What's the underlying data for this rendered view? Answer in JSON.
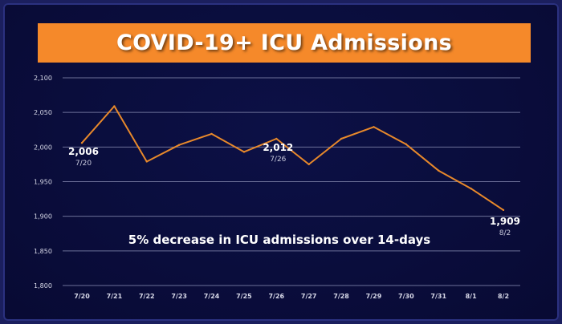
{
  "chart_data": {
    "type": "line",
    "title": "COVID-19+ ICU Admissions",
    "categories": [
      "7/20",
      "7/21",
      "7/22",
      "7/23",
      "7/24",
      "7/25",
      "7/26",
      "7/27",
      "7/28",
      "7/29",
      "7/30",
      "7/31",
      "8/1",
      "8/2"
    ],
    "series": [
      {
        "values": [
          2006,
          2059,
          1979,
          2003,
          2019,
          1993,
          2012,
          1975,
          2012,
          2029,
          2004,
          1966,
          1940,
          1909
        ]
      }
    ],
    "ylim": [
      1800,
      2100
    ],
    "yticks": [
      "1,800",
      "1,850",
      "1,900",
      "1,950",
      "2,000",
      "2,050",
      "2,100"
    ],
    "ytick_values": [
      1800,
      1850,
      1900,
      1950,
      2000,
      2050,
      2100
    ],
    "grid": true,
    "line_color": "#e8892b",
    "data_labels": [
      {
        "index": 0,
        "value": "2,006",
        "date": "7/20"
      },
      {
        "index": 6,
        "value": "2,012",
        "date": "7/26"
      },
      {
        "index": 13,
        "value": "1,909",
        "date": "8/2"
      }
    ],
    "annotation": "5% decrease in ICU admissions over 14-days"
  }
}
